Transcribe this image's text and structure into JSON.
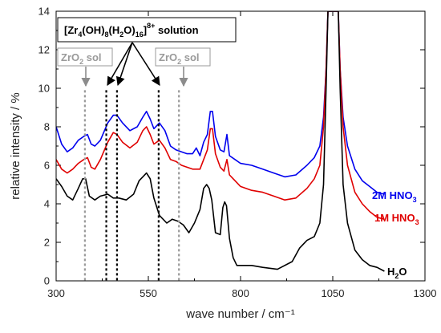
{
  "chart_data": {
    "type": "line",
    "xlabel": "wave number / cm⁻¹",
    "ylabel": "relative intensity / %",
    "xlim": [
      300,
      1300
    ],
    "ylim": [
      0,
      14
    ],
    "x_ticks": [
      300,
      550,
      800,
      1050,
      1300
    ],
    "y_ticks": [
      0,
      2,
      4,
      6,
      8,
      10,
      12,
      14
    ],
    "series": [
      {
        "name": "2M HNO₃",
        "color": "#0000ee",
        "points": [
          [
            300,
            8.0
          ],
          [
            315,
            7.1
          ],
          [
            330,
            6.7
          ],
          [
            345,
            6.9
          ],
          [
            360,
            7.3
          ],
          [
            375,
            7.5
          ],
          [
            385,
            7.6
          ],
          [
            395,
            7.1
          ],
          [
            405,
            7.0
          ],
          [
            420,
            7.3
          ],
          [
            440,
            8.2
          ],
          [
            455,
            8.6
          ],
          [
            465,
            8.6
          ],
          [
            480,
            8.2
          ],
          [
            500,
            7.8
          ],
          [
            520,
            8.0
          ],
          [
            535,
            8.5
          ],
          [
            545,
            8.8
          ],
          [
            555,
            8.4
          ],
          [
            565,
            7.9
          ],
          [
            580,
            8.2
          ],
          [
            595,
            7.8
          ],
          [
            610,
            7.0
          ],
          [
            625,
            6.8
          ],
          [
            640,
            6.7
          ],
          [
            655,
            6.6
          ],
          [
            670,
            6.6
          ],
          [
            680,
            6.9
          ],
          [
            690,
            6.5
          ],
          [
            700,
            7.2
          ],
          [
            710,
            7.6
          ],
          [
            718,
            8.8
          ],
          [
            724,
            8.8
          ],
          [
            732,
            7.5
          ],
          [
            745,
            6.8
          ],
          [
            755,
            6.7
          ],
          [
            763,
            7.6
          ],
          [
            770,
            6.5
          ],
          [
            785,
            6.3
          ],
          [
            800,
            6.1
          ],
          [
            830,
            6.0
          ],
          [
            860,
            5.8
          ],
          [
            890,
            5.6
          ],
          [
            920,
            5.4
          ],
          [
            950,
            5.5
          ],
          [
            980,
            6.0
          ],
          [
            1000,
            6.4
          ],
          [
            1015,
            7.0
          ],
          [
            1025,
            8.5
          ],
          [
            1032,
            11.0
          ],
          [
            1037,
            14.0
          ],
          [
            1065,
            14.0
          ],
          [
            1070,
            11.0
          ],
          [
            1078,
            8.5
          ],
          [
            1090,
            7.0
          ],
          [
            1110,
            5.8
          ],
          [
            1130,
            5.2
          ],
          [
            1150,
            4.9
          ],
          [
            1170,
            4.6
          ],
          [
            1190,
            4.5
          ]
        ]
      },
      {
        "name": "1M HNO₃",
        "color": "#e00000",
        "points": [
          [
            300,
            6.3
          ],
          [
            315,
            5.8
          ],
          [
            330,
            5.6
          ],
          [
            345,
            5.8
          ],
          [
            360,
            6.1
          ],
          [
            375,
            6.3
          ],
          [
            385,
            6.4
          ],
          [
            395,
            5.9
          ],
          [
            405,
            5.8
          ],
          [
            420,
            6.3
          ],
          [
            440,
            7.2
          ],
          [
            455,
            7.7
          ],
          [
            465,
            7.6
          ],
          [
            480,
            7.2
          ],
          [
            500,
            6.9
          ],
          [
            520,
            7.2
          ],
          [
            535,
            7.8
          ],
          [
            545,
            8.0
          ],
          [
            555,
            7.6
          ],
          [
            565,
            7.1
          ],
          [
            580,
            7.3
          ],
          [
            595,
            6.9
          ],
          [
            610,
            6.3
          ],
          [
            625,
            6.2
          ],
          [
            640,
            6.0
          ],
          [
            655,
            5.9
          ],
          [
            670,
            5.8
          ],
          [
            690,
            5.8
          ],
          [
            700,
            6.3
          ],
          [
            710,
            6.8
          ],
          [
            718,
            7.9
          ],
          [
            724,
            7.9
          ],
          [
            732,
            6.6
          ],
          [
            745,
            5.9
          ],
          [
            755,
            5.7
          ],
          [
            763,
            6.3
          ],
          [
            770,
            5.5
          ],
          [
            785,
            5.2
          ],
          [
            800,
            4.9
          ],
          [
            830,
            4.7
          ],
          [
            860,
            4.6
          ],
          [
            890,
            4.4
          ],
          [
            920,
            4.2
          ],
          [
            950,
            4.3
          ],
          [
            980,
            4.8
          ],
          [
            1000,
            5.3
          ],
          [
            1015,
            6.0
          ],
          [
            1025,
            8.0
          ],
          [
            1032,
            11.0
          ],
          [
            1037,
            14.0
          ],
          [
            1065,
            14.0
          ],
          [
            1070,
            11.0
          ],
          [
            1078,
            8.0
          ],
          [
            1090,
            6.0
          ],
          [
            1110,
            4.6
          ],
          [
            1130,
            4.0
          ],
          [
            1150,
            3.6
          ],
          [
            1170,
            3.3
          ],
          [
            1190,
            3.2
          ]
        ]
      },
      {
        "name": "H₂O",
        "color": "#000000",
        "points": [
          [
            300,
            5.3
          ],
          [
            315,
            4.9
          ],
          [
            330,
            4.4
          ],
          [
            345,
            4.2
          ],
          [
            360,
            4.8
          ],
          [
            372,
            5.3
          ],
          [
            380,
            5.3
          ],
          [
            390,
            4.4
          ],
          [
            405,
            4.2
          ],
          [
            420,
            4.4
          ],
          [
            440,
            4.5
          ],
          [
            455,
            4.3
          ],
          [
            470,
            4.3
          ],
          [
            490,
            4.2
          ],
          [
            510,
            4.5
          ],
          [
            525,
            5.2
          ],
          [
            535,
            5.4
          ],
          [
            545,
            5.6
          ],
          [
            555,
            5.3
          ],
          [
            565,
            4.3
          ],
          [
            580,
            3.4
          ],
          [
            600,
            3.0
          ],
          [
            615,
            3.2
          ],
          [
            630,
            3.1
          ],
          [
            645,
            2.9
          ],
          [
            660,
            2.5
          ],
          [
            675,
            3.0
          ],
          [
            690,
            3.7
          ],
          [
            700,
            4.8
          ],
          [
            708,
            5.0
          ],
          [
            715,
            4.8
          ],
          [
            722,
            4.2
          ],
          [
            732,
            2.5
          ],
          [
            745,
            2.4
          ],
          [
            752,
            3.8
          ],
          [
            757,
            4.1
          ],
          [
            762,
            3.9
          ],
          [
            770,
            2.2
          ],
          [
            780,
            1.2
          ],
          [
            790,
            0.8
          ],
          [
            800,
            0.8
          ],
          [
            830,
            0.8
          ],
          [
            860,
            0.7
          ],
          [
            900,
            0.6
          ],
          [
            940,
            1.0
          ],
          [
            960,
            1.7
          ],
          [
            980,
            2.1
          ],
          [
            1000,
            2.3
          ],
          [
            1015,
            3.0
          ],
          [
            1025,
            5.0
          ],
          [
            1032,
            10.0
          ],
          [
            1037,
            14.0
          ],
          [
            1065,
            14.0
          ],
          [
            1070,
            10.0
          ],
          [
            1078,
            5.0
          ],
          [
            1090,
            3.0
          ],
          [
            1110,
            1.6
          ],
          [
            1130,
            1.1
          ],
          [
            1150,
            0.8
          ],
          [
            1170,
            0.7
          ],
          [
            1190,
            0.5
          ]
        ]
      }
    ],
    "annotations": {
      "box_title_main": "[Zr",
      "box_title_sub1": "4",
      "box_title_mid1": "(OH)",
      "box_title_sub2": "8",
      "box_title_mid2": "(H",
      "box_title_sub3": "2",
      "box_title_mid3": "O)",
      "box_title_sub4": "16",
      "box_title_end": "]",
      "box_title_sup": "8+",
      "box_title_tail": " solution",
      "zro2_main": "ZrO",
      "zro2_sub": "2",
      "zro2_tail": " sol",
      "label_2m_main": "2M HNO",
      "label_2m_sub": "3",
      "label_1m_main": "1M HNO",
      "label_1m_sub": "3",
      "label_h2o_main": "H",
      "label_h2o_sub": "2",
      "label_h2o_tail": "O",
      "solution_lines_x": [
        436,
        465,
        578
      ],
      "sol_lines_x": [
        378,
        633
      ]
    }
  }
}
